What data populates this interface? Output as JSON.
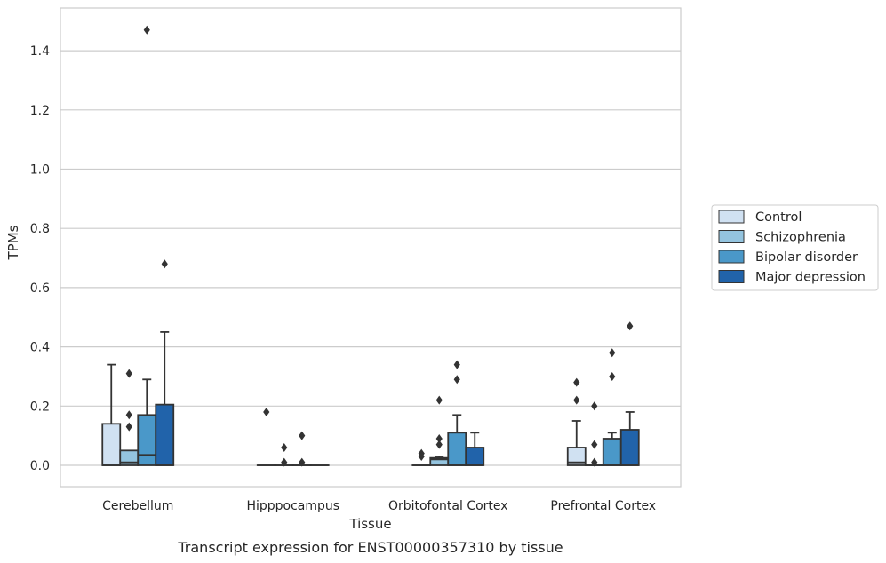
{
  "chart_data": {
    "type": "box",
    "title": "",
    "caption": "Transcript expression for ENST00000357310 by tissue",
    "xlabel": "Tissue",
    "ylabel": "TPMs",
    "ylim": [
      -0.07,
      1.545
    ],
    "yticks": [
      0.0,
      0.2,
      0.4,
      0.6,
      0.8,
      1.0,
      1.2,
      1.4
    ],
    "ytick_labels": [
      "0.0",
      "0.2",
      "0.4",
      "0.6",
      "0.8",
      "1.0",
      "1.2",
      "1.4"
    ],
    "grid": "horizontal",
    "legend_position": "outside-right",
    "categories": [
      "Cerebellum",
      "Hipppocampus",
      "Orbitofontal Cortex",
      "Prefrontal Cortex"
    ],
    "series": [
      {
        "name": "Control",
        "color": "#d0e1f2",
        "boxes": [
          {
            "q1": 0.0,
            "median": 0.0,
            "q3": 0.14,
            "whisker_low": 0.0,
            "whisker_high": 0.34,
            "outliers": []
          },
          {
            "q1": 0.0,
            "median": 0.0,
            "q3": 0.0,
            "whisker_low": 0.0,
            "whisker_high": 0.0,
            "outliers": [
              0.18
            ]
          },
          {
            "q1": 0.0,
            "median": 0.0,
            "q3": 0.0,
            "whisker_low": 0.0,
            "whisker_high": 0.0,
            "outliers": [
              0.04,
              0.03
            ]
          },
          {
            "q1": 0.0,
            "median": 0.01,
            "q3": 0.06,
            "whisker_low": 0.0,
            "whisker_high": 0.15,
            "outliers": [
              0.28,
              0.22
            ]
          }
        ]
      },
      {
        "name": "Schizophrenia",
        "color": "#94c4df",
        "boxes": [
          {
            "q1": 0.0,
            "median": 0.01,
            "q3": 0.05,
            "whisker_low": 0.0,
            "whisker_high": 0.05,
            "outliers": [
              0.31,
              0.17,
              0.13
            ]
          },
          {
            "q1": 0.0,
            "median": 0.0,
            "q3": 0.0,
            "whisker_low": 0.0,
            "whisker_high": 0.0,
            "outliers": [
              0.06,
              0.01
            ]
          },
          {
            "q1": 0.0,
            "median": 0.02,
            "q3": 0.025,
            "whisker_low": 0.0,
            "whisker_high": 0.03,
            "outliers": [
              0.22,
              0.09,
              0.07
            ]
          },
          {
            "q1": 0.0,
            "median": 0.0,
            "q3": 0.0,
            "whisker_low": 0.0,
            "whisker_high": 0.0,
            "outliers": [
              0.2,
              0.07,
              0.01
            ]
          }
        ]
      },
      {
        "name": "Bipolar disorder",
        "color": "#4a98c9",
        "boxes": [
          {
            "q1": 0.0,
            "median": 0.035,
            "q3": 0.17,
            "whisker_low": 0.0,
            "whisker_high": 0.29,
            "outliers": [
              1.47
            ]
          },
          {
            "q1": 0.0,
            "median": 0.0,
            "q3": 0.0,
            "whisker_low": 0.0,
            "whisker_high": 0.0,
            "outliers": [
              0.1,
              0.01
            ]
          },
          {
            "q1": 0.0,
            "median": 0.0,
            "q3": 0.11,
            "whisker_low": 0.0,
            "whisker_high": 0.17,
            "outliers": [
              0.34,
              0.29
            ]
          },
          {
            "q1": 0.0,
            "median": 0.0,
            "q3": 0.09,
            "whisker_low": 0.0,
            "whisker_high": 0.11,
            "outliers": [
              0.38,
              0.3
            ]
          }
        ]
      },
      {
        "name": "Major depression",
        "color": "#2163aa",
        "boxes": [
          {
            "q1": 0.0,
            "median": 0.0,
            "q3": 0.205,
            "whisker_low": 0.0,
            "whisker_high": 0.45,
            "outliers": [
              0.68
            ]
          },
          {
            "q1": 0.0,
            "median": 0.0,
            "q3": 0.0,
            "whisker_low": 0.0,
            "whisker_high": 0.0,
            "outliers": []
          },
          {
            "q1": 0.0,
            "median": 0.0,
            "q3": 0.06,
            "whisker_low": 0.0,
            "whisker_high": 0.11,
            "outliers": []
          },
          {
            "q1": 0.0,
            "median": 0.0,
            "q3": 0.12,
            "whisker_low": 0.0,
            "whisker_high": 0.18,
            "outliers": [
              0.47
            ]
          }
        ]
      }
    ]
  }
}
